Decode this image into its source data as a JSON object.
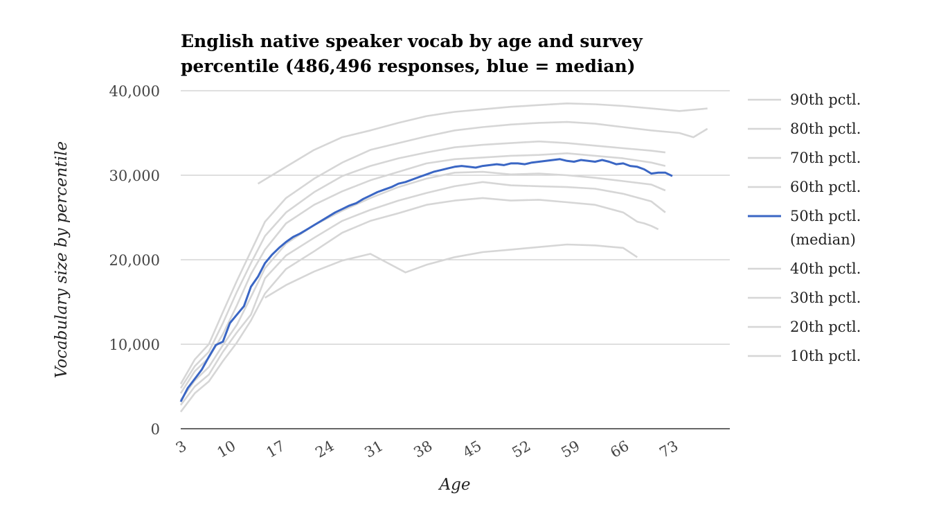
{
  "chart_data": {
    "type": "line",
    "title": [
      "English native speaker vocab by age and survey",
      "percentile (486,496 responses, blue = median)"
    ],
    "xlabel": "Age",
    "ylabel": "Vocabulary size by percentile",
    "xlim": [
      3,
      78
    ],
    "ylim": [
      0,
      40000
    ],
    "x_ticks": [
      3,
      10,
      17,
      24,
      31,
      38,
      45,
      52,
      59,
      66,
      73
    ],
    "y_ticks": [
      0,
      10000,
      20000,
      30000,
      40000
    ],
    "y_tick_labels": [
      "0",
      "10,000",
      "20,000",
      "30,000",
      "40,000"
    ],
    "grid": true,
    "legend_position": "right",
    "colors": {
      "highlight": "#3a66c4",
      "other": "#d6d6d6",
      "grid": "#cccccc",
      "axis": "#333333"
    },
    "series": [
      {
        "name": "90th pctl.",
        "x": [
          14,
          18,
          22,
          26,
          30,
          34,
          38,
          42,
          46,
          50,
          54,
          58,
          62,
          66,
          70,
          74,
          78
        ],
        "values": [
          29000,
          31000,
          33000,
          34500,
          35300,
          36200,
          37000,
          37500,
          37800,
          38100,
          38300,
          38500,
          38400,
          38200,
          37900,
          37600,
          37900
        ]
      },
      {
        "name": "80th pctl.",
        "x": [
          3,
          5,
          7,
          9,
          11,
          13,
          15,
          18,
          22,
          26,
          30,
          34,
          38,
          42,
          46,
          50,
          54,
          58,
          62,
          66,
          70,
          74,
          76,
          78
        ],
        "values": [
          5300,
          8200,
          10000,
          13800,
          17500,
          21000,
          24500,
          27300,
          29600,
          31500,
          33000,
          33800,
          34600,
          35300,
          35700,
          36000,
          36200,
          36300,
          36100,
          35700,
          35300,
          35000,
          34500,
          35500
        ]
      },
      {
        "name": "70th pctl.",
        "x": [
          3,
          5,
          7,
          9,
          11,
          13,
          15,
          18,
          22,
          26,
          30,
          34,
          38,
          42,
          46,
          50,
          54,
          58,
          62,
          66,
          70,
          72
        ],
        "values": [
          4800,
          7400,
          9100,
          12500,
          16200,
          19600,
          22800,
          25600,
          28000,
          29900,
          31100,
          32000,
          32700,
          33300,
          33600,
          33800,
          34000,
          33800,
          33500,
          33200,
          32900,
          32700
        ]
      },
      {
        "name": "60th pctl.",
        "x": [
          3,
          5,
          7,
          9,
          11,
          13,
          15,
          18,
          22,
          26,
          30,
          34,
          38,
          42,
          46,
          50,
          54,
          58,
          62,
          66,
          70,
          72
        ],
        "values": [
          4200,
          6800,
          8400,
          11200,
          14600,
          18300,
          21200,
          24300,
          26500,
          28100,
          29400,
          30400,
          31400,
          31900,
          32100,
          32300,
          32400,
          32600,
          32300,
          32000,
          31500,
          31100
        ]
      },
      {
        "name": "50th pctl.",
        "x": [
          3,
          4,
          5,
          6,
          7,
          8,
          9,
          10,
          11,
          12,
          13,
          14,
          15,
          16,
          17,
          18,
          19,
          20,
          21,
          22,
          23,
          24,
          25,
          26,
          27,
          28,
          29,
          30,
          31,
          32,
          33,
          34,
          35,
          36,
          37,
          38,
          39,
          40,
          41,
          42,
          43,
          44,
          45,
          46,
          47,
          48,
          49,
          50,
          51,
          52,
          53,
          54,
          55,
          56,
          57,
          58,
          59,
          60,
          61,
          62,
          63,
          64,
          65,
          66,
          67,
          68,
          69,
          70,
          71,
          72,
          73
        ],
        "values": [
          3200,
          4800,
          5900,
          7000,
          8500,
          9900,
          10300,
          12500,
          13500,
          14500,
          16800,
          18000,
          19600,
          20600,
          21400,
          22100,
          22700,
          23100,
          23600,
          24100,
          24600,
          25100,
          25600,
          26000,
          26400,
          26700,
          27200,
          27600,
          28000,
          28300,
          28600,
          29000,
          29200,
          29500,
          29800,
          30100,
          30400,
          30600,
          30800,
          31000,
          31100,
          31000,
          30900,
          31100,
          31200,
          31300,
          31200,
          31400,
          31400,
          31300,
          31500,
          31600,
          31700,
          31800,
          31900,
          31700,
          31600,
          31800,
          31700,
          31600,
          31800,
          31600,
          31300,
          31400,
          31100,
          31000,
          30700,
          30200,
          30300,
          30300,
          29900
        ]
      },
      {
        "name": "40th pctl.",
        "x": [
          3,
          5,
          7,
          9,
          11,
          13,
          15,
          18,
          22,
          26,
          30,
          34,
          38,
          42,
          46,
          50,
          54,
          58,
          62,
          66,
          70,
          72
        ],
        "values": [
          3400,
          5700,
          7300,
          9900,
          12300,
          15600,
          19000,
          21900,
          24100,
          25800,
          27300,
          28600,
          29600,
          30300,
          30400,
          30100,
          30200,
          30000,
          29700,
          29300,
          28900,
          28200
        ]
      },
      {
        "name": "30th pctl.",
        "x": [
          3,
          5,
          7,
          9,
          11,
          13,
          15,
          18,
          22,
          26,
          30,
          34,
          38,
          42,
          46,
          50,
          54,
          58,
          62,
          66,
          70,
          72
        ],
        "values": [
          2800,
          5000,
          6400,
          9100,
          11400,
          13500,
          17800,
          20500,
          22600,
          24600,
          25900,
          27000,
          27900,
          28700,
          29200,
          28800,
          28700,
          28600,
          28400,
          27800,
          26900,
          25600
        ]
      },
      {
        "name": "20th pctl.",
        "x": [
          3,
          5,
          7,
          9,
          11,
          13,
          15,
          18,
          22,
          26,
          30,
          34,
          38,
          42,
          46,
          50,
          54,
          58,
          62,
          66,
          68,
          69,
          70,
          71
        ],
        "values": [
          2000,
          4200,
          5600,
          8000,
          10200,
          12800,
          16000,
          18900,
          21000,
          23200,
          24600,
          25500,
          26500,
          27000,
          27300,
          27000,
          27100,
          26800,
          26500,
          25600,
          24500,
          24300,
          24000,
          23600
        ]
      },
      {
        "name": "10th pctl.",
        "x": [
          15,
          18,
          22,
          26,
          30,
          35,
          38,
          42,
          46,
          50,
          54,
          58,
          62,
          66,
          68
        ],
        "values": [
          15500,
          17000,
          18600,
          19900,
          20700,
          18500,
          19400,
          20300,
          20900,
          21200,
          21500,
          21800,
          21700,
          21400,
          20300
        ]
      }
    ],
    "legend": [
      {
        "label": "90th pctl.",
        "sub": ""
      },
      {
        "label": "80th pctl.",
        "sub": ""
      },
      {
        "label": "70th pctl.",
        "sub": ""
      },
      {
        "label": "60th pctl.",
        "sub": ""
      },
      {
        "label": "50th pctl.",
        "sub": "(median)"
      },
      {
        "label": "40th pctl.",
        "sub": ""
      },
      {
        "label": "30th pctl.",
        "sub": ""
      },
      {
        "label": "20th pctl.",
        "sub": ""
      },
      {
        "label": "10th pctl.",
        "sub": ""
      }
    ],
    "highlight_series": "50th pctl."
  }
}
